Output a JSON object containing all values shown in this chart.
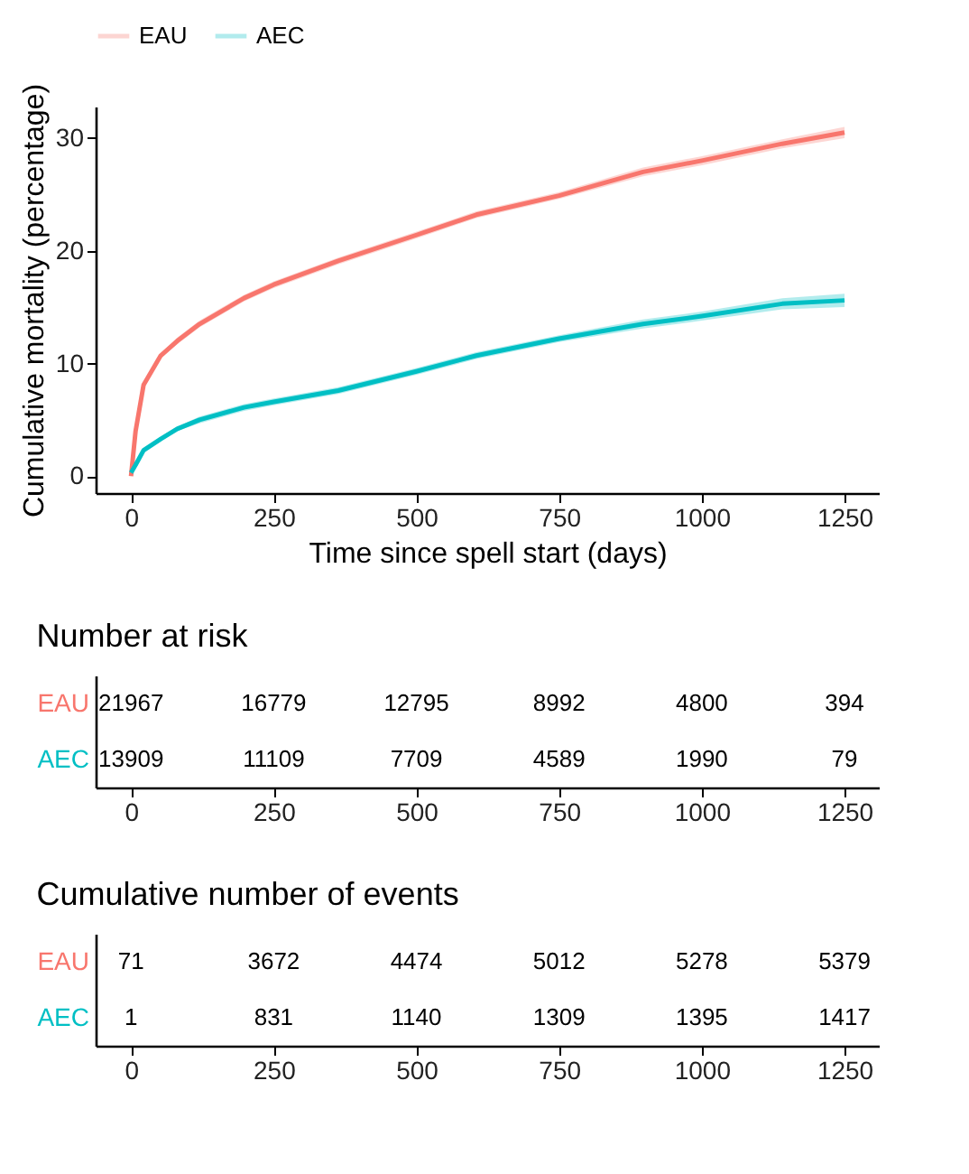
{
  "chart_data": [
    {
      "type": "line",
      "xlabel": "Time since spell start (days)",
      "ylabel": "Cumulative mortality (percentage)",
      "xlim": [
        -62,
        1310
      ],
      "ylim": [
        -1.5,
        32.8
      ],
      "xticks": [
        0,
        250,
        500,
        750,
        1000,
        1250
      ],
      "yticks": [
        0,
        10,
        20,
        30
      ],
      "grid": false,
      "legend": "top",
      "line_style": "solid",
      "x": [
        0,
        8,
        22,
        52,
        81,
        120,
        198,
        250,
        363,
        500,
        605,
        750,
        897,
        1000,
        1141,
        1250
      ],
      "series": [
        {
          "name": "EAU",
          "color": "#f8766d",
          "values": [
            0,
            4,
            8.1,
            10.7,
            12,
            13.5,
            15.8,
            17,
            19.1,
            21.4,
            23.2,
            24.9,
            27,
            28,
            29.5,
            30.5
          ],
          "lower": [
            0,
            3.9,
            8,
            10.5,
            11.7,
            13.2,
            15.5,
            16.7,
            18.8,
            21.1,
            22.9,
            24.6,
            26.6,
            27.6,
            29.1,
            30
          ],
          "upper": [
            0,
            4.1,
            8.2,
            10.9,
            12.3,
            13.8,
            16.1,
            17.3,
            19.4,
            21.7,
            23.5,
            25.2,
            27.4,
            28.4,
            29.9,
            31
          ]
        },
        {
          "name": "AEC",
          "color": "#00bfc4",
          "values": [
            0.3,
            1,
            2.3,
            3.3,
            4.2,
            5,
            6.1,
            6.6,
            7.6,
            9.3,
            10.7,
            12.2,
            13.5,
            14.2,
            15.3,
            15.6
          ],
          "lower": [
            0.3,
            0.9,
            2.2,
            3.1,
            4,
            4.7,
            5.8,
            6.3,
            7.3,
            9,
            10.4,
            11.9,
            13.1,
            13.8,
            14.8,
            15
          ],
          "upper": [
            0.3,
            1.1,
            2.4,
            3.5,
            4.4,
            5.3,
            6.4,
            6.9,
            7.9,
            9.6,
            11,
            12.5,
            13.9,
            14.6,
            15.8,
            16.2
          ]
        }
      ]
    },
    {
      "type": "heatmap",
      "title": "Number at risk",
      "data_labels": true,
      "x": [
        0,
        250,
        500,
        750,
        1000,
        1250
      ],
      "xlim": [
        -62,
        1310
      ],
      "xticks": [
        0,
        250,
        500,
        750,
        1000,
        1250
      ],
      "y_categories": [
        "EAU",
        "AEC"
      ],
      "colors": [
        "#f8766d",
        "#00bfc4"
      ],
      "cells": [
        [
          21967,
          16779,
          12795,
          8992,
          4800,
          394
        ],
        [
          13909,
          11109,
          7709,
          4589,
          1990,
          79
        ]
      ]
    },
    {
      "type": "heatmap",
      "title": "Cumulative number of events",
      "data_labels": true,
      "x": [
        0,
        250,
        500,
        750,
        1000,
        1250
      ],
      "xlim": [
        -62,
        1310
      ],
      "xticks": [
        0,
        250,
        500,
        750,
        1000,
        1250
      ],
      "y_categories": [
        "EAU",
        "AEC"
      ],
      "colors": [
        "#f8766d",
        "#00bfc4"
      ],
      "cells": [
        [
          71,
          3672,
          4474,
          5012,
          5278,
          5379
        ],
        [
          1,
          831,
          1140,
          1309,
          1395,
          1417
        ]
      ]
    }
  ]
}
